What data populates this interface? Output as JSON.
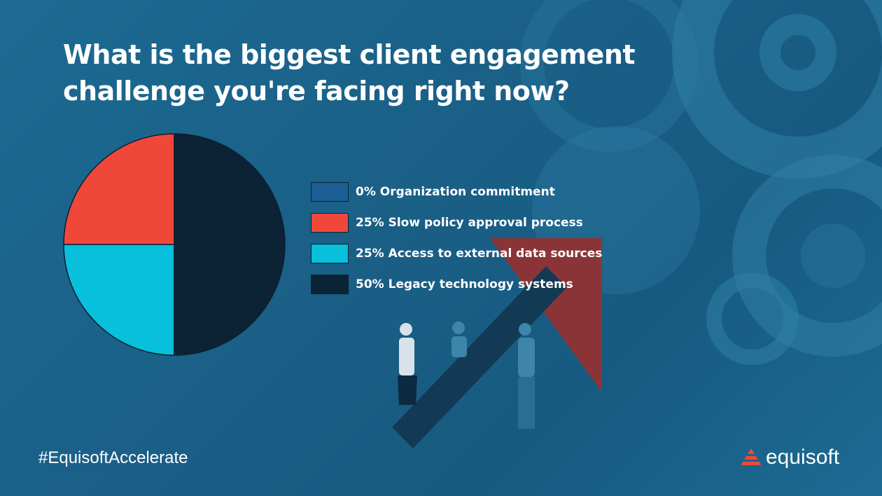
{
  "slide": {
    "title": "What is the biggest client engagement challenge you're facing right now?",
    "hashtag": "#EquisoftAccelerate",
    "brand": "equisoft"
  },
  "colors": {
    "accent_red": "#f0473b",
    "cyan": "#08bfdc",
    "navy": "#0c2235",
    "blue": "#1a5e93"
  },
  "chart_data": {
    "type": "pie",
    "title": "What is the biggest client engagement challenge you're facing right now?",
    "legend_position": "right",
    "slices": [
      {
        "label": "0% Organization commitment",
        "value": 0,
        "color": "#1a5e93"
      },
      {
        "label": "25% Slow policy approval process",
        "value": 25,
        "color": "#f0473b"
      },
      {
        "label": "25% Access to external data sources",
        "value": 25,
        "color": "#08bfdc"
      },
      {
        "label": "50% Legacy technology systems",
        "value": 50,
        "color": "#0c2235"
      }
    ]
  }
}
